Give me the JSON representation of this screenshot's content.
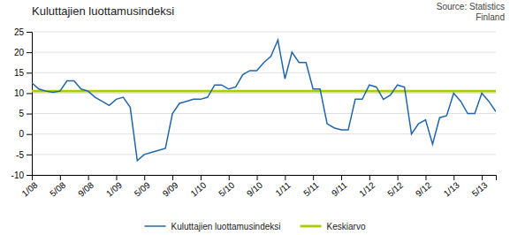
{
  "chart_data": {
    "type": "line",
    "title": "Kuluttajien luottamusindeksi",
    "annotations": [
      "Source: Statistics\nFinland"
    ],
    "categories": [
      "1/08",
      null,
      null,
      null,
      "5/08",
      null,
      null,
      null,
      "9/08",
      null,
      null,
      null,
      "1/09",
      null,
      null,
      null,
      "5/09",
      null,
      null,
      null,
      "9/09",
      null,
      null,
      null,
      "1/10",
      null,
      null,
      null,
      "5/10",
      null,
      null,
      null,
      "9/10",
      null,
      null,
      null,
      "1/11",
      null,
      null,
      null,
      "5/11",
      null,
      null,
      null,
      "9/11",
      null,
      null,
      null,
      "1/12",
      null,
      null,
      null,
      "5/12",
      null,
      null,
      null,
      "9/12",
      null,
      null,
      null,
      "1/13",
      null,
      null,
      null,
      "5/13",
      null,
      null
    ],
    "series": [
      {
        "name": "Kuluttajien luottamusindeksi",
        "color": "#2266AA",
        "values": [
          12.5,
          11.0,
          10.5,
          10.2,
          10.5,
          13.0,
          13.0,
          11.0,
          10.5,
          9.0,
          8.0,
          7.0,
          8.5,
          9.0,
          6.5,
          -6.5,
          -5.0,
          -4.5,
          -4.0,
          -3.5,
          5.0,
          7.5,
          8.0,
          8.5,
          8.5,
          9.0,
          12.0,
          12.0,
          11.0,
          11.5,
          14.5,
          15.5,
          15.5,
          17.5,
          19.0,
          23.0,
          13.5,
          20.0,
          17.5,
          17.5,
          11.0,
          11.0,
          2.5,
          1.5,
          1.0,
          1.0,
          8.5,
          8.5,
          12.0,
          11.5,
          8.5,
          9.5,
          12.0,
          11.5,
          0.0,
          2.5,
          3.5,
          -2.5,
          4.0,
          4.5,
          10.0,
          8.0,
          5.0,
          5.0,
          10.0,
          8.0,
          5.5
        ]
      }
    ],
    "average_line": {
      "name": "Keskiarvo",
      "value": 10.5,
      "color": "#AACC00"
    },
    "ylim": [
      -10,
      25
    ],
    "yticks": [
      -10,
      -5,
      0,
      5,
      10,
      15,
      20,
      25
    ],
    "grid": true,
    "legend": "bottom"
  }
}
